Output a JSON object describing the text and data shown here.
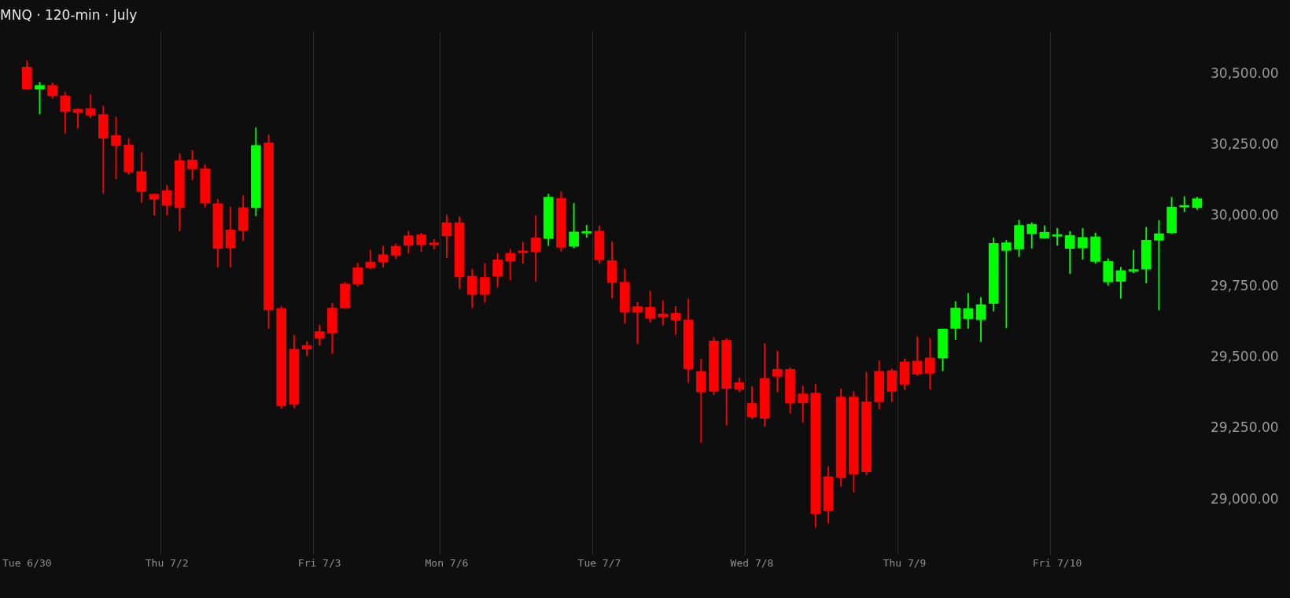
{
  "chart_data": {
    "type": "candlestick",
    "title": "MNQ · 120-min · July",
    "categories": [
      "Tue 6/30",
      null,
      null,
      null,
      null,
      null,
      null,
      null,
      null,
      null,
      null,
      "Thu 7/2",
      null,
      null,
      null,
      null,
      null,
      null,
      null,
      null,
      null,
      null,
      null,
      "Fri 7/3",
      null,
      null,
      null,
      null,
      null,
      null,
      null,
      null,
      null,
      "Mon 7/6",
      null,
      null,
      null,
      null,
      null,
      null,
      null,
      null,
      null,
      null,
      null,
      "Tue 7/7",
      null,
      null,
      null,
      null,
      null,
      null,
      null,
      null,
      null,
      null,
      null,
      "Wed 7/8",
      null,
      null,
      null,
      null,
      null,
      null,
      null,
      null,
      null,
      null,
      null,
      "Thu 7/9",
      null,
      null,
      null,
      null,
      null,
      null,
      null,
      null,
      null,
      null,
      null,
      "Fri 7/10",
      null,
      null,
      null,
      null,
      null,
      null,
      null,
      null,
      null,
      null,
      null
    ],
    "ohlc": [
      [
        30525,
        30548,
        30446,
        30448
      ],
      [
        30448,
        30472,
        30361,
        30461
      ],
      [
        30461,
        30470,
        30417,
        30424
      ],
      [
        30424,
        30437,
        30293,
        30368
      ],
      [
        30377,
        30380,
        30311,
        30366
      ],
      [
        30380,
        30429,
        30346,
        30356
      ],
      [
        30358,
        30389,
        30081,
        30275
      ],
      [
        30284,
        30350,
        30131,
        30250
      ],
      [
        30251,
        30274,
        30147,
        30156
      ],
      [
        30157,
        30224,
        30048,
        30087
      ],
      [
        30077,
        30079,
        30003,
        30059
      ],
      [
        30090,
        30109,
        30005,
        30039
      ],
      [
        30196,
        30220,
        29947,
        30030
      ],
      [
        30198,
        30232,
        30128,
        30167
      ],
      [
        30167,
        30182,
        30031,
        30046
      ],
      [
        30044,
        30059,
        29820,
        29886
      ],
      [
        29951,
        30032,
        29820,
        29889
      ],
      [
        30030,
        30072,
        29913,
        29950
      ],
      [
        30030,
        30312,
        30001,
        30249
      ],
      [
        30258,
        30286,
        29604,
        29669
      ],
      [
        29674,
        29681,
        29322,
        29331
      ],
      [
        29531,
        29580,
        29324,
        29336
      ],
      [
        29544,
        29558,
        29507,
        29531
      ],
      [
        29593,
        29616,
        29545,
        29569
      ],
      [
        29676,
        29693,
        29516,
        29588
      ],
      [
        29761,
        29767,
        29674,
        29676
      ],
      [
        29818,
        29834,
        29753,
        29761
      ],
      [
        29838,
        29880,
        29814,
        29818
      ],
      [
        29864,
        29894,
        29820,
        29839
      ],
      [
        29894,
        29902,
        29850,
        29862
      ],
      [
        29931,
        29948,
        29869,
        29897
      ],
      [
        29934,
        29940,
        29875,
        29900
      ],
      [
        29901,
        29918,
        29884,
        29900
      ],
      [
        29977,
        30004,
        29853,
        29930
      ],
      [
        29977,
        29998,
        29744,
        29786
      ],
      [
        29788,
        29812,
        29677,
        29724
      ],
      [
        29784,
        29833,
        29696,
        29724
      ],
      [
        29846,
        29868,
        29749,
        29789
      ],
      [
        29869,
        29883,
        29774,
        29841
      ],
      [
        29873,
        29908,
        29834,
        29872
      ],
      [
        29923,
        30002,
        29770,
        29874
      ],
      [
        29921,
        30078,
        29896,
        30067
      ],
      [
        30063,
        30086,
        29876,
        29890
      ],
      [
        29894,
        30045,
        29888,
        29944
      ],
      [
        29940,
        29968,
        29925,
        29941
      ],
      [
        29947,
        29966,
        29834,
        29846
      ],
      [
        29843,
        29910,
        29711,
        29767
      ],
      [
        29767,
        29813,
        29622,
        29662
      ],
      [
        29681,
        29696,
        29550,
        29662
      ],
      [
        29679,
        29736,
        29625,
        29640
      ],
      [
        29655,
        29702,
        29615,
        29645
      ],
      [
        29657,
        29682,
        29584,
        29634
      ],
      [
        29634,
        29708,
        29413,
        29462
      ],
      [
        29452,
        29497,
        29202,
        29380
      ],
      [
        29560,
        29572,
        29370,
        29382
      ],
      [
        29562,
        29568,
        29263,
        29392
      ],
      [
        29413,
        29430,
        29380,
        29390
      ],
      [
        29340,
        29399,
        29286,
        29292
      ],
      [
        29428,
        29550,
        29259,
        29287
      ],
      [
        29460,
        29524,
        29380,
        29435
      ],
      [
        29460,
        29466,
        29305,
        29341
      ],
      [
        29373,
        29401,
        29274,
        29342
      ],
      [
        29376,
        29408,
        28903,
        28951
      ],
      [
        29081,
        29117,
        28917,
        28962
      ],
      [
        29362,
        29391,
        29046,
        29079
      ],
      [
        29362,
        29382,
        29027,
        29091
      ],
      [
        29345,
        29450,
        29087,
        29098
      ],
      [
        29453,
        29491,
        29319,
        29346
      ],
      [
        29455,
        29461,
        29346,
        29382
      ],
      [
        29486,
        29497,
        29388,
        29407
      ],
      [
        29489,
        29575,
        29438,
        29443
      ],
      [
        29500,
        29570,
        29389,
        29446
      ],
      [
        29500,
        29602,
        29454,
        29602
      ],
      [
        29604,
        29699,
        29565,
        29676
      ],
      [
        29638,
        29728,
        29604,
        29674
      ],
      [
        29635,
        29713,
        29557,
        29688
      ],
      [
        29692,
        29923,
        29665,
        29904
      ],
      [
        29879,
        29915,
        29606,
        29906
      ],
      [
        29884,
        29986,
        29857,
        29967
      ],
      [
        29938,
        29977,
        29887,
        29971
      ],
      [
        29923,
        29966,
        29921,
        29943
      ],
      [
        29929,
        29957,
        29897,
        29930
      ],
      [
        29886,
        29946,
        29797,
        29932
      ],
      [
        29888,
        29957,
        29848,
        29925
      ],
      [
        29840,
        29941,
        29834,
        29927
      ],
      [
        29768,
        29850,
        29756,
        29840
      ],
      [
        29770,
        29820,
        29710,
        29808
      ],
      [
        29806,
        29880,
        29800,
        29807
      ],
      [
        29813,
        29961,
        29764,
        29915
      ],
      [
        29915,
        29985,
        29669,
        29938
      ],
      [
        29941,
        30067,
        29938,
        30032
      ],
      [
        30032,
        30069,
        30015,
        30033
      ],
      [
        30030,
        30067,
        30023,
        30061
      ]
    ],
    "colors": [
      "#ff0000",
      "#00ff00",
      "#ff0000",
      "#ff0000",
      "#ff0000",
      "#ff0000",
      "#ff0000",
      "#ff0000",
      "#ff0000",
      "#ff0000",
      "#ff0000",
      "#ff0000",
      "#ff0000",
      "#ff0000",
      "#ff0000",
      "#ff0000",
      "#ff0000",
      "#ff0000",
      "#00ff00",
      "#ff0000",
      "#ff0000",
      "#ff0000",
      "#ff0000",
      "#ff0000",
      "#ff0000",
      "#ff0000",
      "#ff0000",
      "#ff0000",
      "#ff0000",
      "#ff0000",
      "#ff0000",
      "#ff0000",
      "#ff0000",
      "#ff0000",
      "#ff0000",
      "#ff0000",
      "#ff0000",
      "#ff0000",
      "#ff0000",
      "#ff0000",
      "#ff0000",
      "#00ff00",
      "#ff0000",
      "#00ff00",
      "#00ff00",
      "#ff0000",
      "#ff0000",
      "#ff0000",
      "#ff0000",
      "#ff0000",
      "#ff0000",
      "#ff0000",
      "#ff0000",
      "#ff0000",
      "#ff0000",
      "#ff0000",
      "#ff0000",
      "#ff0000",
      "#ff0000",
      "#ff0000",
      "#ff0000",
      "#ff0000",
      "#ff0000",
      "#ff0000",
      "#ff0000",
      "#ff0000",
      "#ff0000",
      "#ff0000",
      "#ff0000",
      "#ff0000",
      "#ff0000",
      "#ff0000",
      "#00ff00",
      "#00ff00",
      "#00ff00",
      "#00ff00",
      "#00ff00",
      "#00ff00",
      "#00ff00",
      "#00ff00",
      "#00ff00",
      "#00ff00",
      "#00ff00",
      "#00ff00",
      "#00ff00",
      "#00ff00",
      "#00ff00",
      "#00ff00",
      "#00ff00",
      "#00ff00",
      "#00ff00",
      "#00ff00",
      "#00ff00"
    ],
    "ylim": [
      28805,
      30650
    ],
    "yticks": [
      {
        "value": 29000,
        "label": "29,000.00"
      },
      {
        "value": 29250,
        "label": "29,250.00"
      },
      {
        "value": 29500,
        "label": "29,500.00"
      },
      {
        "value": 29750,
        "label": "29,750.00"
      },
      {
        "value": 30000,
        "label": "30,000.00"
      },
      {
        "value": 30250,
        "label": "30,250.00"
      },
      {
        "value": 30500,
        "label": "30,500.00"
      }
    ],
    "grid": "x"
  }
}
